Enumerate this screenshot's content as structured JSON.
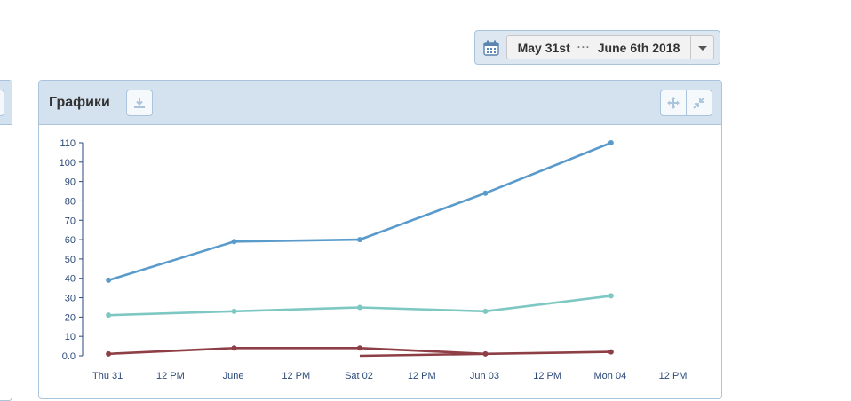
{
  "date_range": {
    "start": "May 31st",
    "separator": "···",
    "end": "June 6th 2018"
  },
  "panel": {
    "title": "Графики"
  },
  "icons": {
    "calendar": "calendar-icon",
    "download": "download-icon",
    "move": "move-icon",
    "collapse": "collapse-icon",
    "dropdown": "chevron-down-icon"
  },
  "colors": {
    "series_blue": "#5b9bcb",
    "series_teal": "#7ec8c4",
    "series_red": "#8e3f45",
    "tick_text": "#2b4a78"
  },
  "chart_data": {
    "type": "line",
    "title": "",
    "xlabel": "",
    "ylabel": "",
    "x_ticks": [
      "Thu 31",
      "12 PM",
      "June",
      "12 PM",
      "Sat 02",
      "12 PM",
      "Jun 03",
      "12 PM",
      "Mon 04",
      "12 PM"
    ],
    "y_ticks": [
      "0.0",
      "10",
      "20",
      "30",
      "40",
      "50",
      "60",
      "70",
      "80",
      "90",
      "100",
      "110"
    ],
    "x_unit": "half-days from May 31",
    "xlim": [
      -0.2,
      9.6
    ],
    "ylim": [
      0,
      110
    ],
    "grid": false,
    "legend": "none",
    "series": [
      {
        "color": "#5b9bcb",
        "markers": true,
        "points": [
          [
            0,
            39
          ],
          [
            2,
            59
          ],
          [
            4,
            60
          ],
          [
            6,
            84
          ],
          [
            8,
            110
          ]
        ]
      },
      {
        "color": "#7ec8c4",
        "markers": true,
        "points": [
          [
            0,
            21
          ],
          [
            2,
            23
          ],
          [
            4,
            25
          ],
          [
            6,
            23
          ],
          [
            8,
            31
          ]
        ]
      },
      {
        "color": "#8e3f45",
        "markers": true,
        "points": [
          [
            0,
            1
          ],
          [
            2,
            4
          ],
          [
            4,
            4
          ],
          [
            6,
            1
          ],
          [
            8,
            2
          ]
        ]
      },
      {
        "color": "#8e3f45",
        "markers": false,
        "points": [
          [
            4,
            0
          ],
          [
            6,
            1
          ]
        ]
      }
    ]
  }
}
